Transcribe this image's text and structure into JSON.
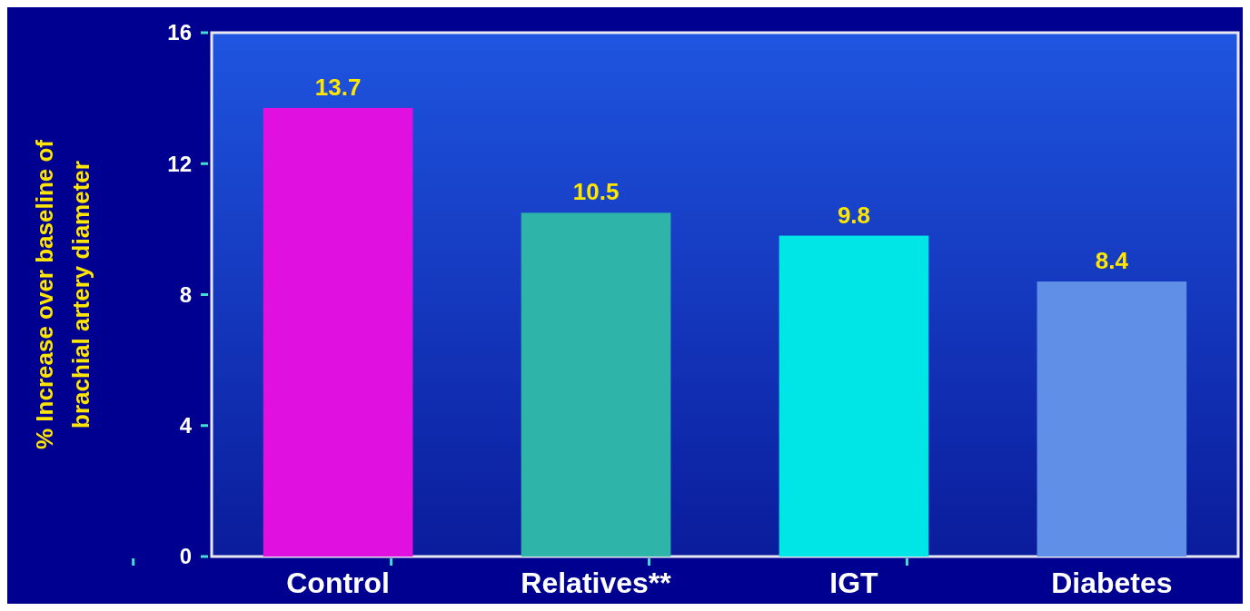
{
  "chart_data": {
    "type": "bar",
    "ylabel": "% Increase over baseline of brachial artery diameter",
    "categories": [
      "Control",
      "Relatives**",
      "IGT",
      "Diabetes"
    ],
    "values": [
      13.7,
      10.5,
      9.8,
      8.4
    ],
    "colors": [
      "#e010e0",
      "#2fb4aa",
      "#00e6e6",
      "#5f8fe6"
    ],
    "ylim": [
      0,
      16
    ],
    "yticks": [
      0,
      4,
      8,
      12,
      16
    ],
    "grid": false,
    "data_labels": true
  }
}
